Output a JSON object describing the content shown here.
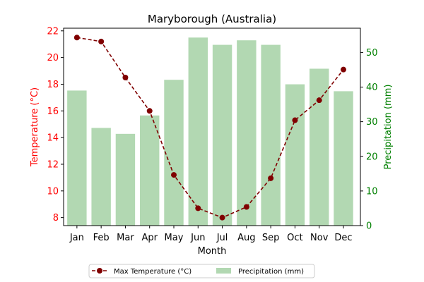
{
  "chart_data": {
    "type": "bar+line",
    "title": "Maryborough (Australia)",
    "xlabel": "Month",
    "categories": [
      "Jan",
      "Feb",
      "Mar",
      "Apr",
      "May",
      "Jun",
      "Jul",
      "Aug",
      "Sep",
      "Oct",
      "Nov",
      "Dec"
    ],
    "y_left": {
      "label": "Temperature (°C)",
      "ylim": [
        7.4,
        22.2
      ],
      "ticks": [
        8,
        10,
        12,
        14,
        16,
        18,
        20,
        22
      ],
      "color": "#ff0000"
    },
    "y_right": {
      "label": "Precipitation (mm)",
      "ylim": [
        0,
        57
      ],
      "ticks": [
        0,
        10,
        20,
        30,
        40,
        50
      ],
      "color": "#008000"
    },
    "series": [
      {
        "name": "Max Temperature (°C)",
        "kind": "line",
        "axis": "left",
        "color": "#800000",
        "values": [
          21.5,
          21.2,
          18.5,
          16.0,
          11.2,
          8.7,
          8.0,
          8.8,
          10.95,
          15.3,
          16.8,
          19.1
        ]
      },
      {
        "name": "Precipitation (mm)",
        "kind": "bar",
        "axis": "right",
        "color": "#b2d8b2",
        "values": [
          39.0,
          28.2,
          26.5,
          31.8,
          42.1,
          54.3,
          52.2,
          53.5,
          52.2,
          40.8,
          45.3,
          38.8
        ]
      }
    ],
    "legend": {
      "placement": "bottom-center"
    }
  }
}
